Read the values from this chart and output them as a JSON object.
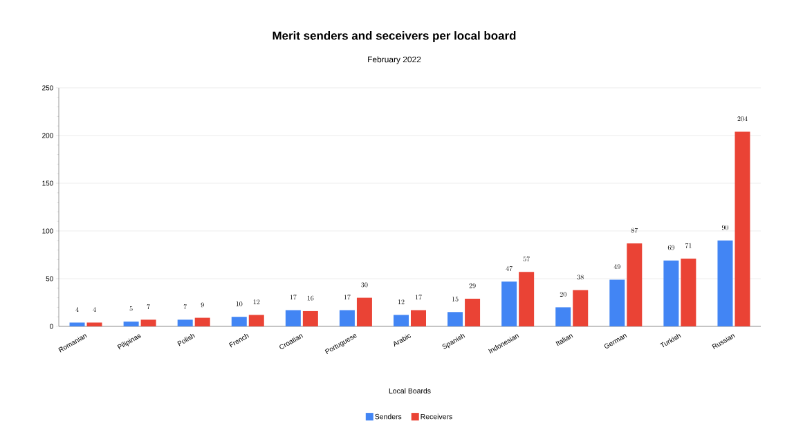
{
  "chart_data": {
    "type": "bar",
    "title": "Merit senders and seceivers per local board",
    "subtitle": "February 2022",
    "xlabel": "Local Boards",
    "categories": [
      "Romanian",
      "Pilipinas",
      "Polish",
      "French",
      "Croatian",
      "Portuguese",
      "Arabic",
      "Spanish",
      "Indonesian",
      "Italian",
      "German",
      "Turkish",
      "Russian"
    ],
    "series": [
      {
        "name": "Senders",
        "color": "#4285f4",
        "values": [
          4,
          5,
          7,
          10,
          17,
          17,
          12,
          15,
          47,
          20,
          49,
          69,
          90
        ]
      },
      {
        "name": "Receivers",
        "color": "#ea4335",
        "values": [
          4,
          7,
          9,
          12,
          16,
          30,
          17,
          29,
          57,
          38,
          87,
          71,
          204
        ]
      }
    ],
    "ylim": [
      0,
      250
    ],
    "yticks": [
      0,
      50,
      100,
      150,
      200,
      250
    ],
    "grid": "y",
    "legend": "bottom",
    "data_labels": true
  }
}
